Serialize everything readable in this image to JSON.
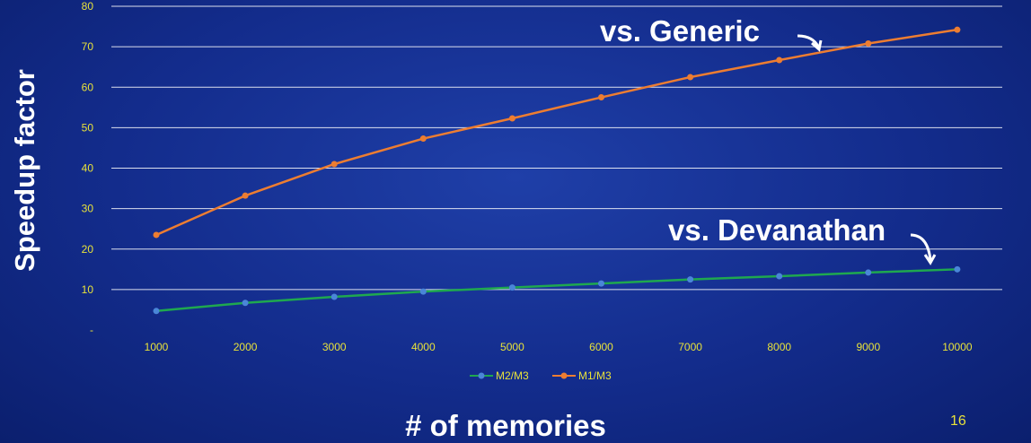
{
  "chart_data": {
    "type": "line",
    "x": [
      1000,
      2000,
      3000,
      4000,
      5000,
      6000,
      7000,
      8000,
      9000,
      10000
    ],
    "x_tick_labels": [
      "1000",
      "2000",
      "3000",
      "4000",
      "5000",
      "6000",
      "7000",
      "8000",
      "9000",
      "10000"
    ],
    "y_tick_labels": [
      "-",
      "10",
      "20",
      "30",
      "40",
      "50",
      "60",
      "70",
      "80"
    ],
    "ylim": [
      0,
      80
    ],
    "grid": true,
    "xlabel": "# of memories",
    "ylabel": "Speedup factor",
    "legend_position": "bottom-center",
    "series": [
      {
        "name": "M2/M3",
        "color": "#1fa84f",
        "marker_color": "#4a86d8",
        "values": [
          4.7,
          6.7,
          8.2,
          9.5,
          10.5,
          11.5,
          12.5,
          13.3,
          14.2,
          15.0
        ]
      },
      {
        "name": "M1/M3",
        "color": "#ed7d31",
        "marker_color": "#ed7d31",
        "values": [
          23.5,
          33.2,
          41.0,
          47.3,
          52.3,
          57.5,
          62.5,
          66.7,
          70.8,
          74.2
        ]
      }
    ],
    "annotations": [
      {
        "text": "vs. Generic",
        "target_series": "M1/M3"
      },
      {
        "text": "vs. Devanathan",
        "target_series": "M2/M3"
      }
    ]
  },
  "page_number": "16",
  "colors": {
    "tick_text": "#e8e23a",
    "grid": "#ffffff",
    "background": "#132c8c"
  }
}
